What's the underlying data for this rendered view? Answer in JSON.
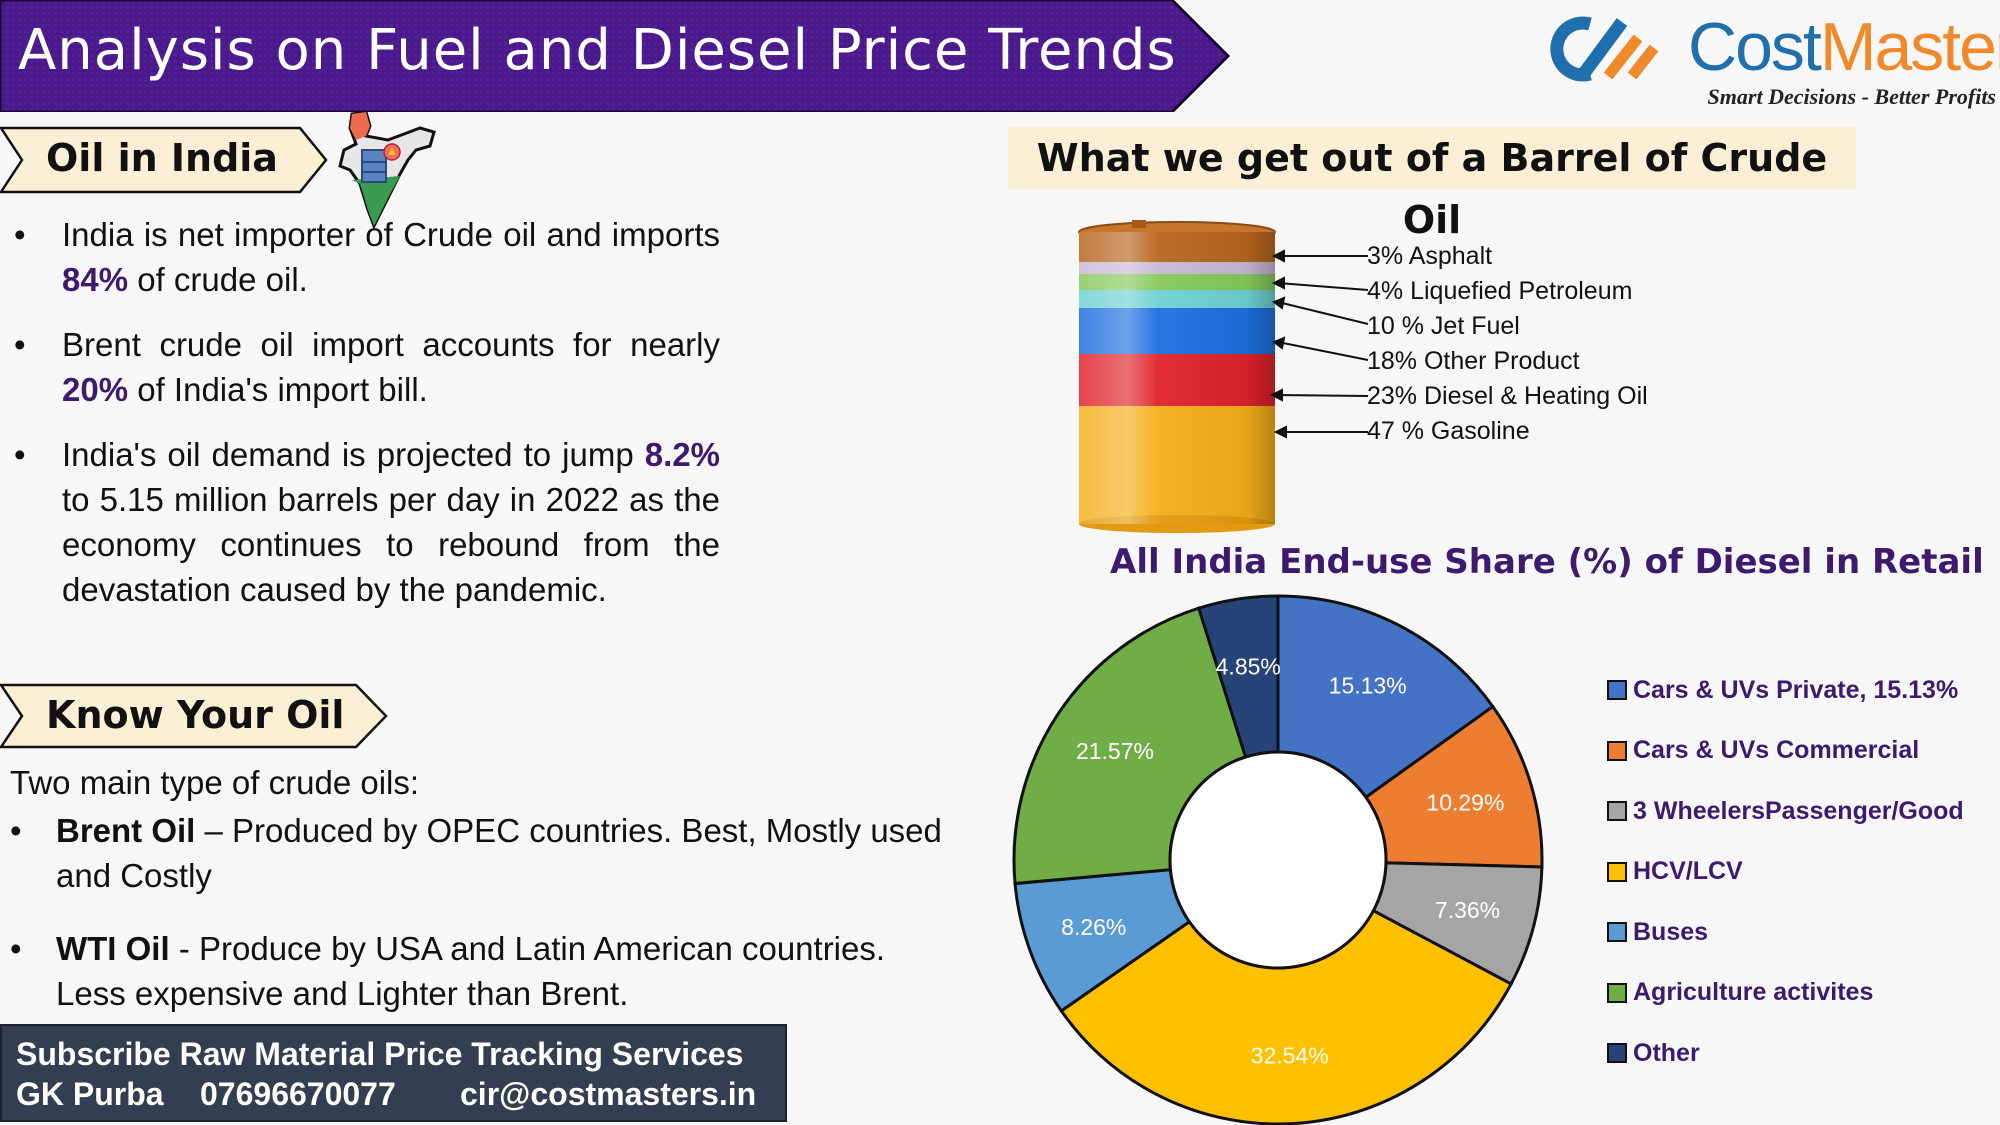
{
  "header": {
    "title": "Analysis on Fuel and Diesel Price Trends",
    "banner_color": "#4b1a8a"
  },
  "logo": {
    "name_part1": "Cost",
    "name_part2": "Masters",
    "tagline": "Smart Decisions - Better Profits",
    "color_primary": "#1f6fad",
    "color_accent": "#f0892a"
  },
  "oil_in_india": {
    "heading": "Oil in India",
    "icon": "india-map-oil-barrel-icon",
    "bullets": [
      {
        "pre": "India is net importer of Crude oil and imports ",
        "highlight": "84%",
        "post": " of crude oil."
      },
      {
        "pre": "Brent crude oil import accounts for nearly ",
        "highlight": "20%",
        "post": " of India's import bill."
      },
      {
        "pre": "India's oil demand is projected to jump ",
        "highlight": "8.2%",
        "post": " to 5.15 million barrels per day in 2022 as the economy continues to rebound from the devastation caused by the pandemic."
      }
    ]
  },
  "know_your_oil": {
    "heading": "Know Your Oil",
    "intro": "Two main type of crude oils:",
    "items": [
      {
        "name": "Brent Oil",
        "desc": " – Produced by OPEC countries. Best, Mostly used and Costly"
      },
      {
        "name": "WTI Oil",
        "desc": "  - Produce by  USA and Latin American countries.  Less expensive and Lighter than Brent."
      }
    ]
  },
  "subscribe": {
    "line1": "Subscribe Raw Material Price Tracking Services",
    "contact_name": "GK Purba",
    "phone": "07696670077",
    "email": "cir@costmasters.in"
  },
  "barrel": {
    "title": "What we get out of a Barrel of Crude Oil",
    "layers": [
      {
        "label": "3% Asphalt",
        "value": 3,
        "color": "#c9b8d6"
      },
      {
        "label": "4% Liquefied Petroleum",
        "value": 4,
        "color": "#86c95a"
      },
      {
        "label": "10 % Jet Fuel",
        "value": 10,
        "color": "#6fd1d3"
      },
      {
        "label": "18% Other Product",
        "value": 18,
        "color": "#1e6fe0"
      },
      {
        "label": "23% Diesel & Heating Oil",
        "value": 23,
        "color": "#e0232b"
      },
      {
        "label": "47 % Gasoline",
        "value": 47,
        "color": "#f4ae1a"
      }
    ]
  },
  "donut": {
    "title": "All India End-use Share (%) of Diesel in Retail"
  },
  "chart_data": [
    {
      "type": "bar",
      "title": "What we get out of a Barrel of Crude Oil",
      "categories": [
        "Asphalt",
        "Liquefied Petroleum",
        "Jet Fuel",
        "Other Product",
        "Diesel & Heating Oil",
        "Gasoline"
      ],
      "values": [
        3,
        4,
        10,
        18,
        23,
        47
      ],
      "unit": "%",
      "note": "stacked barrel illustration"
    },
    {
      "type": "pie",
      "subtype": "donut",
      "title": "All India End-use Share (%) of Diesel in Retail",
      "categories": [
        "Cars & UVs Private",
        "Cars & UVs Commercial",
        "3 WheelersPassenger/Good",
        "HCV/LCV",
        "Buses",
        "Agriculture activites",
        "Other"
      ],
      "legend_labels": [
        "Cars & UVs Private, 15.13%",
        "Cars & UVs Commercial",
        "3 WheelersPassenger/Good",
        "HCV/LCV",
        "Buses",
        "Agriculture activites",
        "Other"
      ],
      "values": [
        15.13,
        10.29,
        7.36,
        32.54,
        8.26,
        21.57,
        4.85
      ],
      "data_labels": [
        "15.13%",
        "10.29%",
        "7.36%",
        "32.54%",
        "8.26%",
        "21.57%",
        "4.85%"
      ],
      "colors": [
        "#4472c4",
        "#ed7d31",
        "#a5a5a5",
        "#ffc000",
        "#5b9bd5",
        "#70ad47",
        "#264478"
      ],
      "legend_position": "right"
    }
  ]
}
